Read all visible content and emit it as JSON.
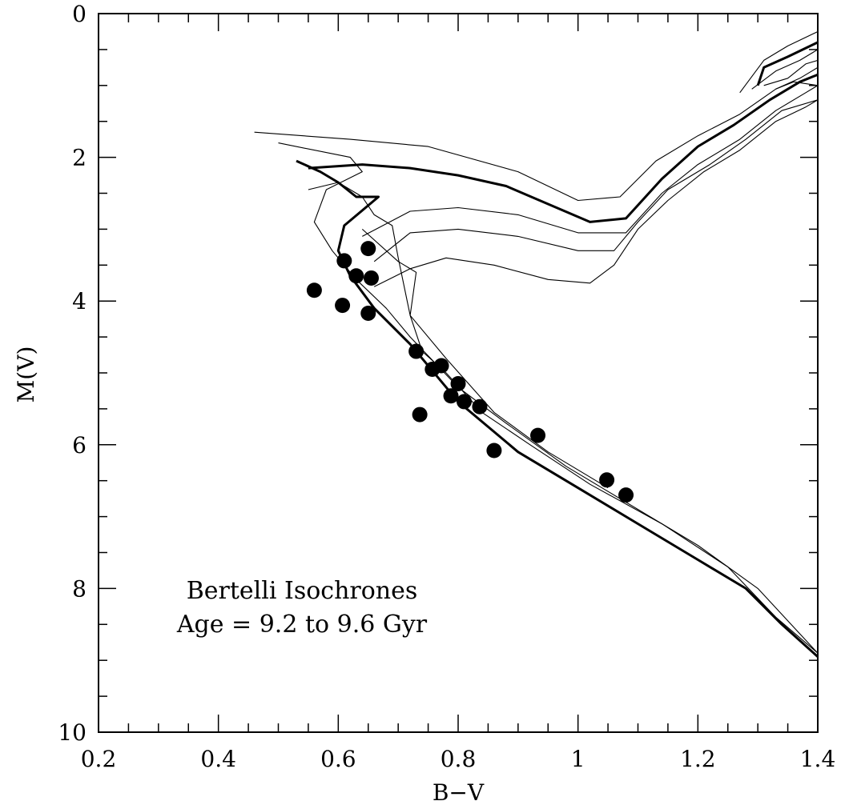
{
  "chart_data": {
    "type": "scatter",
    "xlabel": "B−V",
    "ylabel": "M(V)",
    "xlim": [
      0.2,
      1.4
    ],
    "ylim": [
      10,
      0
    ],
    "y_inverted": true,
    "grid": false,
    "x_ticks": [
      "0.2",
      "0.4",
      "0.6",
      "0.8",
      "1",
      "1.2",
      "1.4"
    ],
    "x_tick_values": [
      0.2,
      0.4,
      0.6,
      0.8,
      1.0,
      1.2,
      1.4
    ],
    "y_ticks": [
      "0",
      "2",
      "4",
      "6",
      "8",
      "10"
    ],
    "y_tick_values": [
      0,
      2,
      4,
      6,
      8,
      10
    ],
    "annotation": {
      "line1": "Bertelli Isochrones",
      "line2": "Age = 9.2 to 9.6 Gyr"
    },
    "points": [
      {
        "x": 0.56,
        "y": 3.85
      },
      {
        "x": 0.607,
        "y": 4.06
      },
      {
        "x": 0.61,
        "y": 3.44
      },
      {
        "x": 0.63,
        "y": 3.65
      },
      {
        "x": 0.65,
        "y": 3.27
      },
      {
        "x": 0.655,
        "y": 3.68
      },
      {
        "x": 0.65,
        "y": 4.17
      },
      {
        "x": 0.73,
        "y": 4.7
      },
      {
        "x": 0.757,
        "y": 4.95
      },
      {
        "x": 0.772,
        "y": 4.9
      },
      {
        "x": 0.8,
        "y": 5.15
      },
      {
        "x": 0.788,
        "y": 5.32
      },
      {
        "x": 0.81,
        "y": 5.4
      },
      {
        "x": 0.836,
        "y": 5.47
      },
      {
        "x": 0.736,
        "y": 5.58
      },
      {
        "x": 0.86,
        "y": 6.08
      },
      {
        "x": 0.933,
        "y": 5.87
      },
      {
        "x": 1.048,
        "y": 6.49
      },
      {
        "x": 1.08,
        "y": 6.7
      }
    ],
    "isochrones": [
      {
        "style": "thick",
        "x": [
          0.53,
          0.57,
          0.6,
          0.63,
          0.667,
          0.61,
          0.6,
          0.62,
          0.66,
          0.72,
          0.8,
          0.9,
          1.0,
          1.1,
          1.2,
          1.28,
          1.34,
          1.4
        ],
        "y": [
          2.05,
          2.2,
          2.35,
          2.55,
          2.55,
          2.95,
          3.3,
          3.65,
          4.1,
          4.6,
          5.4,
          6.1,
          6.6,
          7.1,
          7.6,
          8.0,
          8.5,
          8.95
        ]
      },
      {
        "style": "thick",
        "x": [
          0.55,
          0.64,
          0.72,
          0.8,
          0.88,
          0.95,
          1.02,
          1.08,
          1.14,
          1.2,
          1.26,
          1.32,
          1.37,
          1.4
        ],
        "y": [
          2.15,
          2.1,
          2.15,
          2.25,
          2.4,
          2.65,
          2.9,
          2.85,
          2.3,
          1.85,
          1.55,
          1.2,
          0.95,
          0.85
        ]
      },
      {
        "style": "thick",
        "x": [
          1.3,
          1.31,
          1.35,
          1.4
        ],
        "y": [
          1.0,
          0.75,
          0.6,
          0.4
        ]
      },
      {
        "style": "thin",
        "x": [
          0.46,
          0.62,
          0.75,
          0.9,
          1.0,
          1.07,
          1.13,
          1.2,
          1.27,
          1.33,
          1.37,
          1.4
        ],
        "y": [
          1.65,
          1.75,
          1.85,
          2.2,
          2.6,
          2.55,
          2.05,
          1.7,
          1.4,
          1.05,
          0.9,
          0.75
        ]
      },
      {
        "style": "thin",
        "x": [
          0.5,
          0.62,
          0.64,
          0.58,
          0.56,
          0.59,
          0.63,
          0.68,
          0.72,
          0.76,
          0.8,
          0.88,
          0.98,
          1.1,
          1.2,
          1.3,
          1.4
        ],
        "y": [
          1.8,
          2.0,
          2.2,
          2.45,
          2.9,
          3.3,
          3.7,
          4.1,
          4.5,
          4.85,
          5.2,
          5.7,
          6.3,
          6.9,
          7.4,
          8.0,
          8.9
        ]
      },
      {
        "style": "thin",
        "x": [
          0.55,
          0.6,
          0.64,
          0.66,
          0.69,
          0.7,
          0.72,
          0.78,
          0.86,
          0.95,
          1.05
        ],
        "y": [
          2.45,
          2.35,
          2.55,
          2.8,
          2.95,
          3.4,
          4.2,
          4.8,
          5.55,
          6.1,
          6.6
        ]
      },
      {
        "style": "thin",
        "x": [
          0.64,
          0.72,
          0.8,
          0.9,
          1.0,
          1.08,
          1.14,
          1.2,
          1.27,
          1.33,
          1.38,
          1.4
        ],
        "y": [
          3.1,
          2.75,
          2.7,
          2.8,
          3.05,
          3.05,
          2.5,
          2.1,
          1.75,
          1.35,
          1.1,
          1.0
        ]
      },
      {
        "style": "thin",
        "x": [
          0.66,
          0.72,
          0.8,
          0.9,
          1.0,
          1.06,
          1.1,
          1.15,
          1.22,
          1.28,
          1.34,
          1.4
        ],
        "y": [
          3.45,
          3.05,
          3.0,
          3.1,
          3.3,
          3.3,
          2.9,
          2.45,
          2.1,
          1.75,
          1.35,
          1.2
        ]
      },
      {
        "style": "thin",
        "x": [
          0.64,
          0.7,
          0.73,
          0.72,
          0.74,
          0.78,
          0.84,
          0.92,
          1.02,
          1.14,
          1.25,
          1.33,
          1.4
        ],
        "y": [
          3.0,
          3.45,
          3.6,
          4.2,
          4.7,
          5.0,
          5.55,
          6.0,
          6.55,
          7.1,
          7.7,
          8.4,
          8.9
        ]
      },
      {
        "style": "thin",
        "x": [
          0.66,
          0.72,
          0.78,
          0.86,
          0.95,
          1.02,
          1.06,
          1.1,
          1.15,
          1.21,
          1.27,
          1.33,
          1.38,
          1.4
        ],
        "y": [
          3.8,
          3.55,
          3.4,
          3.5,
          3.7,
          3.75,
          3.5,
          3.0,
          2.6,
          2.2,
          1.9,
          1.5,
          1.3,
          1.2
        ]
      },
      {
        "style": "thin",
        "x": [
          1.27,
          1.31,
          1.35,
          1.4,
          1.4
        ],
        "y": [
          1.1,
          0.65,
          0.45,
          0.25,
          0.25
        ]
      },
      {
        "style": "thin",
        "x": [
          1.29,
          1.33,
          1.37,
          1.4
        ],
        "y": [
          1.05,
          0.8,
          0.65,
          0.5
        ]
      },
      {
        "style": "thin",
        "x": [
          1.31,
          1.35,
          1.38,
          1.4
        ],
        "y": [
          1.0,
          0.9,
          0.7,
          0.65
        ]
      },
      {
        "style": "thin",
        "x": [
          1.33,
          1.36,
          1.4
        ],
        "y": [
          1.05,
          0.95,
          1.0
        ]
      }
    ]
  }
}
